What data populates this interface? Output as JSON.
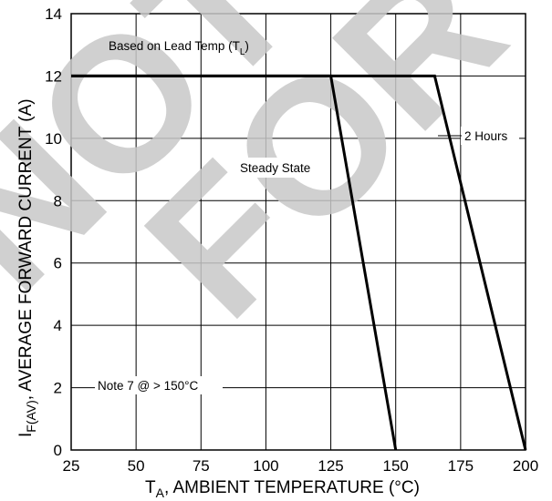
{
  "chart_data": {
    "type": "line",
    "xlabel_main": "T",
    "xlabel_sub": "A",
    "xlabel_rest": ", AMBIENT TEMPERATURE (°C)",
    "ylabel_main": "I",
    "ylabel_sub": "F(AV)",
    "ylabel_rest": ", AVERAGE FORWARD CURRENT (A)",
    "xlim": [
      25,
      200
    ],
    "ylim": [
      0,
      14
    ],
    "x_ticks": [
      "25",
      "50",
      "75",
      "100",
      "125",
      "150",
      "175",
      "200"
    ],
    "y_ticks": [
      "0",
      "2",
      "4",
      "6",
      "8",
      "10",
      "12",
      "14"
    ],
    "grid": true,
    "series": [
      {
        "name": "Steady State",
        "x": [
          25,
          125,
          150
        ],
        "y": [
          12,
          12,
          0
        ]
      },
      {
        "name": "2 Hours",
        "x": [
          25,
          165,
          200
        ],
        "y": [
          12,
          12,
          0
        ]
      }
    ],
    "annotations": {
      "lead_temp_main": "Based on Lead Temp (T",
      "lead_temp_sub": "L",
      "lead_temp_close": ")",
      "note": "Note 7 @ > 150°C"
    },
    "watermark": "NOT FOR NEW DESIGN"
  }
}
